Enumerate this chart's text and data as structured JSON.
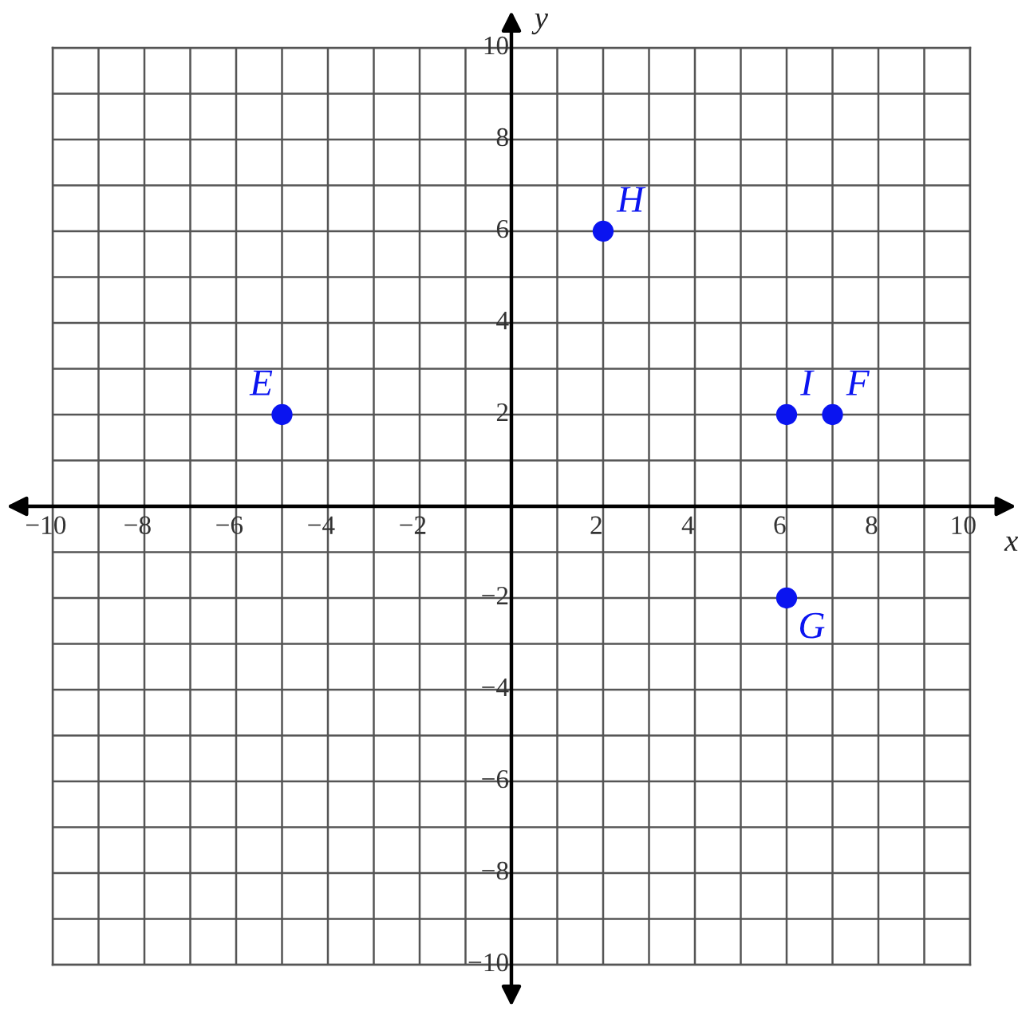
{
  "chart_data": {
    "type": "scatter",
    "xlabel": "x",
    "ylabel": "y",
    "x": [
      -5,
      2,
      6,
      7,
      6
    ],
    "series": [
      {
        "color": "#0a14f0",
        "values": [
          2,
          6,
          2,
          2,
          -2
        ]
      }
    ],
    "marker": "circle",
    "annotations": [
      {
        "text": "E",
        "x": -5,
        "y": 2
      },
      {
        "text": "H",
        "x": 2,
        "y": 6
      },
      {
        "text": "I",
        "x": 6,
        "y": 2
      },
      {
        "text": "F",
        "x": 7,
        "y": 2
      },
      {
        "text": "G",
        "x": 6,
        "y": -2
      }
    ],
    "xlim": [
      -10,
      10
    ],
    "ylim": [
      -10,
      10
    ],
    "xticks": [
      {
        "value": -10,
        "label": "−10"
      },
      {
        "value": -9,
        "label": null
      },
      {
        "value": -8,
        "label": "−8"
      },
      {
        "value": -7,
        "label": null
      },
      {
        "value": -6,
        "label": "−6"
      },
      {
        "value": -5,
        "label": null
      },
      {
        "value": -4,
        "label": "−4"
      },
      {
        "value": -3,
        "label": null
      },
      {
        "value": -2,
        "label": "−2"
      },
      {
        "value": -1,
        "label": null
      },
      {
        "value": 1,
        "label": null
      },
      2,
      {
        "value": 3,
        "label": null
      },
      4,
      {
        "value": 5,
        "label": null
      },
      6,
      {
        "value": 7,
        "label": null
      },
      8,
      {
        "value": 9,
        "label": null
      },
      10
    ],
    "yticks": [
      {
        "value": -10,
        "label": "−10"
      },
      {
        "value": -9,
        "label": null
      },
      {
        "value": -8,
        "label": "−8"
      },
      {
        "value": -7,
        "label": null
      },
      {
        "value": -6,
        "label": "−6"
      },
      {
        "value": -5,
        "label": null
      },
      {
        "value": -4,
        "label": "−4"
      },
      {
        "value": -3,
        "label": null
      },
      {
        "value": -2,
        "label": "−2"
      },
      {
        "value": -1,
        "label": null
      },
      {
        "value": 1,
        "label": null
      },
      2,
      {
        "value": 3,
        "label": null
      },
      4,
      {
        "value": 5,
        "label": null
      },
      6,
      {
        "value": 7,
        "label": null
      },
      8,
      {
        "value": 9,
        "label": null
      },
      10
    ],
    "grid": true
  }
}
